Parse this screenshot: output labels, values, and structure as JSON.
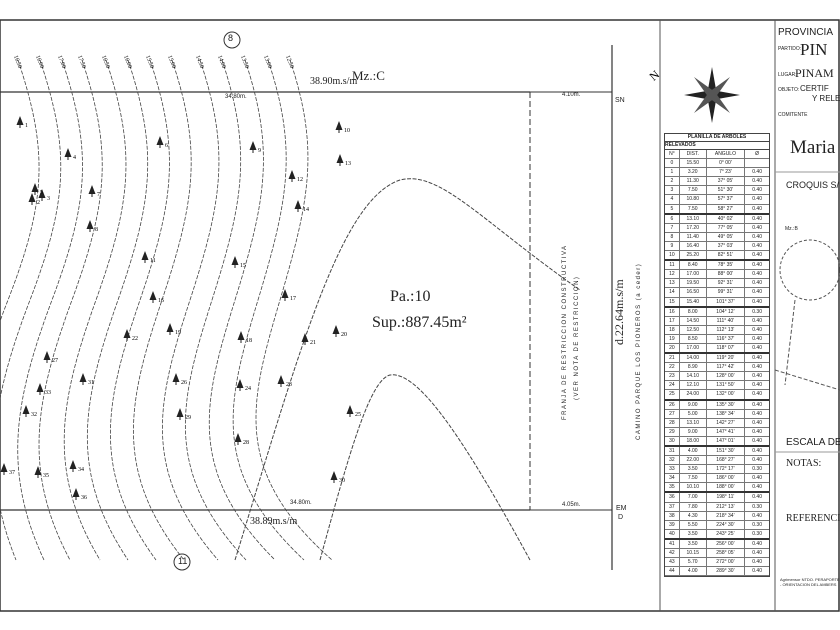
{
  "plan": {
    "block": "Mz.:C",
    "parcel": "Pa.:10",
    "area": "Sup.:887.45m²",
    "top_dim": "38.90m.s/m",
    "bottom_dim": "38.89m.s/m",
    "top_inner_dim": "34.80m.",
    "bottom_inner_dim": "34.80m.",
    "side_dim": "d.22.64m.s/m",
    "top_right_dim": "4.10m.",
    "bottom_right_dim": "4.05m.",
    "corner_top": "SN",
    "corner_bottom": "EM",
    "corner_bottom_sub": "D",
    "parcel_top": "8",
    "parcel_bottom": "11",
    "strip_label_1": "FRANJA DE RESTRICCION CONSTRUCTIVA",
    "strip_label_2": "(VER NOTA DE RESTRICCION)",
    "road_label": "CAMINO PARQUE LOS PIONEROS (a ceder)",
    "contours": [
      "16.50",
      "16.00",
      "17.00",
      "17.50",
      "16.50",
      "16.00",
      "15.50",
      "15.00",
      "14.50",
      "14.00",
      "13.50",
      "13.00",
      "12.50"
    ],
    "trees": [
      "1",
      "2",
      "3",
      "4",
      "5",
      "6",
      "7",
      "8",
      "9",
      "10",
      "11",
      "12",
      "13",
      "14",
      "15",
      "16",
      "17",
      "18",
      "19",
      "20",
      "21",
      "22",
      "23",
      "24",
      "25",
      "26",
      "27",
      "28",
      "29",
      "30",
      "31",
      "32",
      "33",
      "34",
      "35",
      "36",
      "37"
    ]
  },
  "table": {
    "title": "PLANILLA DE ARBOLES",
    "subtitle": "RELEVADOS",
    "headers": [
      "N°",
      "DIST.",
      "ANGULO",
      "Ø"
    ],
    "origin": [
      "0",
      "15.50",
      "0° 00'",
      ""
    ],
    "rows": [
      [
        "1",
        "3.20",
        "7° 23'",
        "0.40"
      ],
      [
        "2",
        "11.30",
        "37° 05'",
        "0.40"
      ],
      [
        "3",
        "7.50",
        "51° 30'",
        "0.40"
      ],
      [
        "4",
        "10.80",
        "57° 37'",
        "0.40"
      ],
      [
        "5",
        "7.50",
        "58° 27'",
        "0.40"
      ],
      [
        "6",
        "13.10",
        "40° 02'",
        "0.40"
      ],
      [
        "7",
        "17.20",
        "77° 05'",
        "0.40"
      ],
      [
        "8",
        "11.40",
        "49° 05'",
        "0.40"
      ],
      [
        "9",
        "16.40",
        "37° 03'",
        "0.40"
      ],
      [
        "10",
        "25.20",
        "82° 51'",
        "0.40"
      ],
      [
        "11",
        "8.40",
        "78° 35'",
        "0.40"
      ],
      [
        "12",
        "17.00",
        "88° 00'",
        "0.40"
      ],
      [
        "13",
        "19.50",
        "92° 31'",
        "0.40"
      ],
      [
        "14",
        "16.50",
        "99° 31'",
        "0.40"
      ],
      [
        "15",
        "15.40",
        "101° 37'",
        "0.40"
      ],
      [
        "16",
        "8.00",
        "104° 12'",
        "0.30"
      ],
      [
        "17",
        "14.50",
        "111° 40'",
        "0.40"
      ],
      [
        "18",
        "12.50",
        "112° 13'",
        "0.40"
      ],
      [
        "19",
        "8.50",
        "116° 37'",
        "0.40"
      ],
      [
        "20",
        "17.00",
        "118° 07'",
        "0.40"
      ],
      [
        "21",
        "14.00",
        "119° 20'",
        "0.40"
      ],
      [
        "22",
        "8.90",
        "117° 42'",
        "0.40"
      ],
      [
        "23",
        "14.10",
        "128° 00'",
        "0.40"
      ],
      [
        "24",
        "12.10",
        "131° 50'",
        "0.40"
      ],
      [
        "25",
        "24.00",
        "132° 00'",
        "0.40"
      ],
      [
        "26",
        "9.00",
        "135° 30'",
        "0.40"
      ],
      [
        "27",
        "5.00",
        "138° 34'",
        "0.40"
      ],
      [
        "28",
        "13.10",
        "142° 27'",
        "0.40"
      ],
      [
        "29",
        "9.00",
        "147° 41'",
        "0.40"
      ],
      [
        "30",
        "18.00",
        "147° 01'",
        "0.40"
      ],
      [
        "31",
        "4.00",
        "151° 30'",
        "0.40"
      ],
      [
        "32",
        "22.00",
        "168° 27'",
        "0.40"
      ],
      [
        "33",
        "3.50",
        "172° 17'",
        "0.30"
      ],
      [
        "34",
        "7.50",
        "186° 00'",
        "0.40"
      ],
      [
        "35",
        "10.10",
        "188° 00'",
        "0.40"
      ],
      [
        "36",
        "7.00",
        "198° 11'",
        "0.40"
      ],
      [
        "37",
        "7.80",
        "212° 13'",
        "0.30"
      ],
      [
        "38",
        "4.30",
        "218° 34'",
        "0.40"
      ],
      [
        "39",
        "5.50",
        "224° 30'",
        "0.30"
      ],
      [
        "40",
        "3.50",
        "243° 25'",
        "0.30"
      ],
      [
        "41",
        "3.50",
        "256° 00'",
        "0.40"
      ],
      [
        "42",
        "10.15",
        "258° 05'",
        "0.40"
      ],
      [
        "43",
        "5.70",
        "272° 00'",
        "0.40"
      ],
      [
        "44",
        "4.00",
        "289° 30'",
        "0.40"
      ]
    ]
  },
  "title_block": {
    "province": "PROVINCIA",
    "partido_label": "PARTIDO:",
    "partido": "PIN",
    "lugar_label": "LUGAR:",
    "lugar": "PINAM",
    "objeto_label": "OBJETO:",
    "objeto": "CERTIF",
    "objeto2": "Y RELE",
    "comitente_label": "COMITENTE",
    "comitente": "Maria",
    "croquis": "CROQUIS S/",
    "croquis_block": "Mz.:B",
    "escala": "ESCALA DE",
    "notas": "NOTAS:",
    "referencias": "REFERENCIA",
    "footer": "Agrimensor NTDO. PERAPORTE - ORIENTACION DEL AMBERS"
  },
  "colors": {
    "ink": "#222222",
    "paper": "#ffffff"
  }
}
